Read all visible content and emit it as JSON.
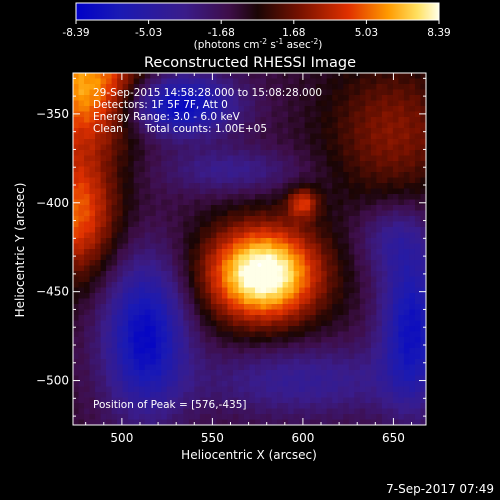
{
  "chart_data": {
    "type": "heatmap",
    "title": "Reconstructed RHESSI Image",
    "xlabel": "Heliocentric X (arcsec)",
    "ylabel": "Heliocentric Y (arcsec)",
    "xlim": [
      473,
      668
    ],
    "ylim": [
      -525,
      -327
    ],
    "x_ticks": [
      500,
      550,
      600,
      650
    ],
    "y_ticks": [
      -350,
      -400,
      -450,
      -500
    ],
    "colorbar": {
      "ticks": [
        "-8.39",
        "-5.03",
        "-1.68",
        "1.68",
        "5.03",
        "8.39"
      ],
      "range": [
        -8.39,
        8.39
      ],
      "units_label": "(photons cm",
      "units_sup1": "-2",
      "units_mid1": " s",
      "units_sup2": "-1",
      "units_mid2": " asec",
      "units_sup3": "-2",
      "units_end": ")"
    },
    "annotations": {
      "time_range": "29-Sep-2015 14:58:28.000 to 15:08:28.000",
      "detectors": "Detectors: 1F 5F 7F, Att 0",
      "energy": "Energy Range: 3.0 - 6.0 keV",
      "clean": "Clean",
      "counts": "Total counts: 1.00E+05",
      "peak": "Position of Peak = [576,-435]"
    },
    "peak_position": [
      576,
      -435
    ],
    "peak_value": 8.39,
    "sources": [
      {
        "x": 578,
        "y": -440,
        "amp": 10.5,
        "sx": 22,
        "sy": 19
      },
      {
        "x": 600,
        "y": -400,
        "amp": 4.5,
        "sx": 6,
        "sy": 6
      },
      {
        "x": 482,
        "y": -335,
        "amp": 7.5,
        "sx": 22,
        "sy": 22
      },
      {
        "x": 475,
        "y": -405,
        "amp": 6.0,
        "sx": 16,
        "sy": 26
      },
      {
        "x": 650,
        "y": -360,
        "amp": 3.2,
        "sx": 26,
        "sy": 28
      },
      {
        "x": 530,
        "y": -345,
        "amp": -7.2,
        "sx": 22,
        "sy": 12
      },
      {
        "x": 513,
        "y": -475,
        "amp": -6.8,
        "sx": 16,
        "sy": 30
      },
      {
        "x": 660,
        "y": -470,
        "amp": -6.2,
        "sx": 12,
        "sy": 30
      },
      {
        "x": 600,
        "y": -500,
        "amp": -3.0,
        "sx": 40,
        "sy": 14
      },
      {
        "x": 560,
        "y": -382,
        "amp": -2.6,
        "sx": 26,
        "sy": 9
      },
      {
        "x": 650,
        "y": -420,
        "amp": -2.5,
        "sx": 14,
        "sy": 14
      }
    ],
    "baseline": -1.0
  },
  "footer": {
    "timestamp": "7-Sep-2017 07:49"
  }
}
